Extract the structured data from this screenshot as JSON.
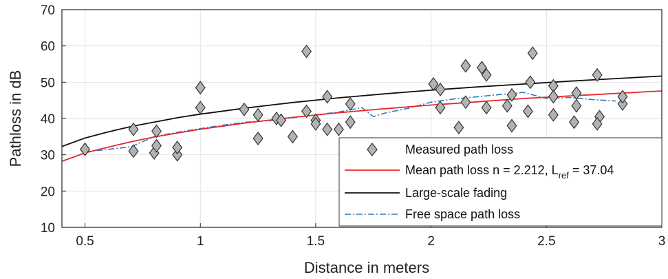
{
  "chart_data": {
    "type": "scatter",
    "xlabel": "Distance in meters",
    "ylabel": "Pathloss in dB",
    "xlim": [
      0.4,
      3.0
    ],
    "ylim": [
      10,
      70
    ],
    "xticks": [
      0.5,
      1,
      1.5,
      2,
      2.5,
      3
    ],
    "xtick_labels": [
      "0.5",
      "1",
      "1.5",
      "2",
      "2.5",
      "3"
    ],
    "yticks": [
      10,
      20,
      30,
      40,
      50,
      60,
      70
    ],
    "ytick_labels": [
      "10",
      "20",
      "30",
      "40",
      "50",
      "60",
      "70"
    ],
    "grid": true,
    "legend_position": "bottom-right",
    "colors": {
      "measured_fill": "#b3b3b3",
      "measured_edge": "#333333",
      "mean": "#e8282e",
      "large_scale": "#111111",
      "free_space": "#2e7bbf"
    },
    "series": [
      {
        "name": "Measured path loss",
        "kind": "markers",
        "points": [
          [
            0.5,
            31.5
          ],
          [
            0.71,
            37
          ],
          [
            0.71,
            31
          ],
          [
            0.8,
            30.5
          ],
          [
            0.81,
            36.5
          ],
          [
            0.81,
            32.5
          ],
          [
            0.9,
            30
          ],
          [
            0.9,
            32
          ],
          [
            1.0,
            48.5
          ],
          [
            1.0,
            43
          ],
          [
            1.19,
            42.5
          ],
          [
            1.25,
            41
          ],
          [
            1.25,
            34.5
          ],
          [
            1.33,
            40
          ],
          [
            1.35,
            39.5
          ],
          [
            1.4,
            35
          ],
          [
            1.46,
            58.5
          ],
          [
            1.46,
            42
          ],
          [
            1.5,
            39.5
          ],
          [
            1.5,
            38.5
          ],
          [
            1.55,
            46
          ],
          [
            1.55,
            37
          ],
          [
            1.6,
            37
          ],
          [
            1.65,
            44
          ],
          [
            1.65,
            39
          ],
          [
            2.01,
            49.5
          ],
          [
            2.04,
            48
          ],
          [
            2.04,
            43
          ],
          [
            2.12,
            37.5
          ],
          [
            2.15,
            54.5
          ],
          [
            2.15,
            44.5
          ],
          [
            2.22,
            54
          ],
          [
            2.24,
            52
          ],
          [
            2.24,
            43
          ],
          [
            2.33,
            43.5
          ],
          [
            2.35,
            46.5
          ],
          [
            2.35,
            38
          ],
          [
            2.42,
            42
          ],
          [
            2.43,
            50
          ],
          [
            2.44,
            58
          ],
          [
            2.53,
            49
          ],
          [
            2.53,
            46
          ],
          [
            2.53,
            41
          ],
          [
            2.63,
            47
          ],
          [
            2.63,
            43.5
          ],
          [
            2.62,
            39
          ],
          [
            2.72,
            52
          ],
          [
            2.73,
            40.5
          ],
          [
            2.72,
            38.5
          ],
          [
            2.83,
            44
          ],
          [
            2.83,
            46
          ]
        ]
      },
      {
        "name": "Mean path loss n = 2.212, L",
        "name_subscript": "ref",
        "name_suffix": " = 37.04",
        "kind": "line",
        "x": [
          0.4,
          0.5,
          0.6,
          0.7,
          0.8,
          0.9,
          1.0,
          1.2,
          1.4,
          1.6,
          1.8,
          2.0,
          2.2,
          2.4,
          2.6,
          2.8,
          3.0
        ],
        "y": [
          28.2,
          30.5,
          32.1,
          33.6,
          34.9,
          36.0,
          37.04,
          38.8,
          40.3,
          41.6,
          42.7,
          43.7,
          44.6,
          45.5,
          46.2,
          46.9,
          47.6
        ]
      },
      {
        "name": "Large-scale fading",
        "kind": "line",
        "x": [
          0.4,
          0.5,
          0.6,
          0.7,
          0.8,
          0.9,
          1.0,
          1.2,
          1.4,
          1.6,
          1.8,
          2.0,
          2.2,
          2.4,
          2.6,
          2.8,
          3.0
        ],
        "y": [
          32.3,
          34.6,
          36.3,
          37.8,
          39.0,
          40.2,
          41.2,
          42.9,
          44.4,
          45.7,
          46.8,
          47.8,
          48.7,
          49.5,
          50.3,
          51.0,
          51.7
        ]
      },
      {
        "name": "Free space path loss",
        "kind": "dashdot",
        "x": [
          0.5,
          0.6,
          0.7,
          0.8,
          0.9,
          1.0,
          1.1,
          1.2,
          1.3,
          1.4,
          1.5,
          1.6,
          1.7,
          1.75,
          1.8,
          1.9,
          2.0,
          2.1,
          2.2,
          2.3,
          2.4,
          2.5,
          2.6,
          2.7,
          2.8
        ],
        "y": [
          30.8,
          31.5,
          32.2,
          35.0,
          36.2,
          37.2,
          38.2,
          39.0,
          39.4,
          40.2,
          41.0,
          41.8,
          43.0,
          40.5,
          41.5,
          42.8,
          44.5,
          45.4,
          46.0,
          46.6,
          47.2,
          45.5,
          45.8,
          45.2,
          44.8
        ]
      }
    ]
  }
}
